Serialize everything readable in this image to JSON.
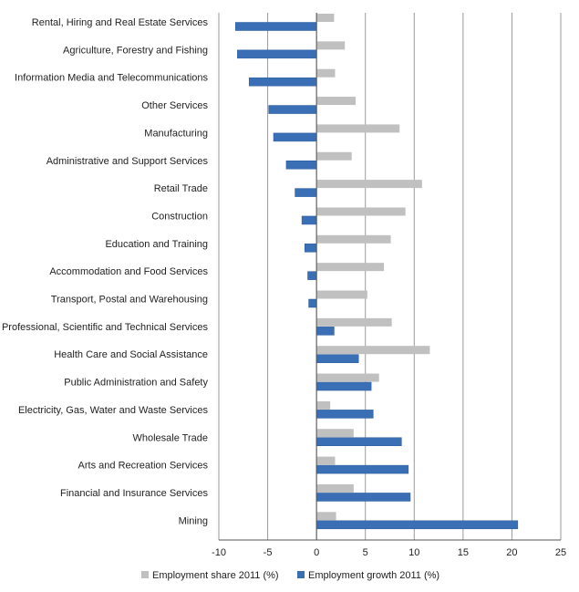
{
  "chart_data": {
    "type": "bar",
    "orientation": "horizontal",
    "categories": [
      "Rental, Hiring and Real Estate Services",
      "Agriculture, Forestry and Fishing",
      "Information Media and Telecommunications",
      "Other Services",
      "Manufacturing",
      "Administrative and Support Services",
      "Retail Trade",
      "Construction",
      "Education and Training",
      "Accommodation and Food Services",
      "Transport, Postal and Warehousing",
      "Professional, Scientific and Technical Services",
      "Health Care and Social Assistance",
      "Public Administration and Safety",
      "Electricity, Gas, Water and Waste Services",
      "Wholesale Trade",
      "Arts and Recreation Services",
      "Financial and Insurance Services",
      "Mining"
    ],
    "series": [
      {
        "name": "Employment share 2011 (%)",
        "color": "#c0c0c0",
        "values": [
          1.8,
          2.9,
          1.9,
          4.0,
          8.5,
          3.6,
          10.8,
          9.1,
          7.6,
          6.9,
          5.2,
          7.7,
          11.6,
          6.4,
          1.4,
          3.8,
          1.9,
          3.8,
          2.0
        ]
      },
      {
        "name": "Employment growth 2011 (%)",
        "color": "#3a6fb5",
        "values": [
          -8.3,
          -8.1,
          -6.9,
          -4.9,
          -4.4,
          -3.1,
          -2.2,
          -1.5,
          -1.2,
          -0.9,
          -0.8,
          1.8,
          4.3,
          5.6,
          5.8,
          8.7,
          9.4,
          9.6,
          20.6
        ]
      }
    ],
    "xlim": [
      -10,
      25
    ],
    "x_ticks": [
      "-10",
      "-5",
      "0",
      "5",
      "10",
      "15",
      "20",
      "25"
    ],
    "grid": "vertical",
    "legend_position": "bottom",
    "title": "",
    "xlabel": "",
    "ylabel": ""
  }
}
